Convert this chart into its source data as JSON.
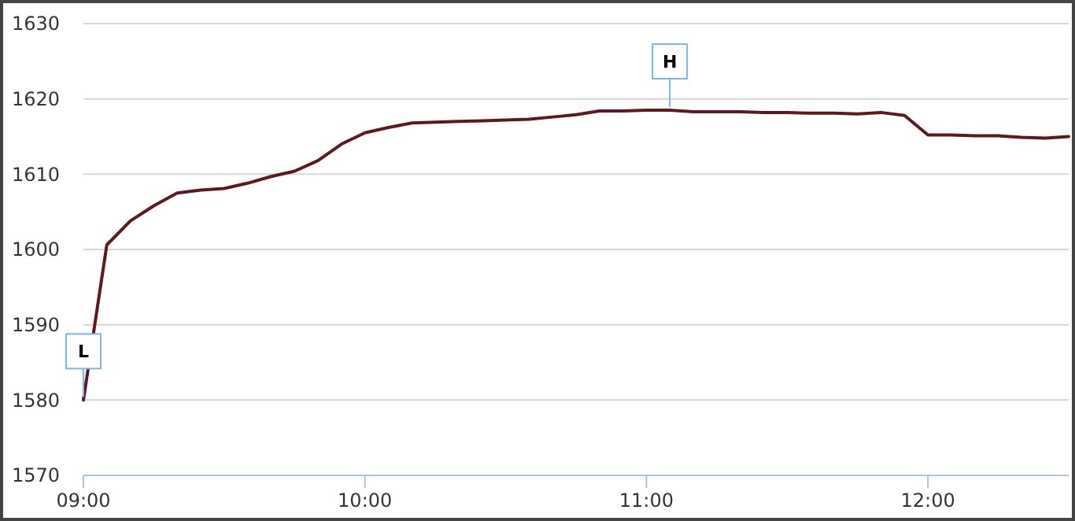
{
  "chart_data": {
    "type": "line",
    "x": [
      9,
      9.083,
      9.167,
      9.25,
      9.333,
      9.417,
      9.5,
      9.583,
      9.667,
      9.75,
      9.833,
      9.917,
      10,
      10.083,
      10.167,
      10.25,
      10.333,
      10.417,
      10.5,
      10.583,
      10.667,
      10.75,
      10.833,
      10.917,
      11,
      11.083,
      11.167,
      11.25,
      11.333,
      11.417,
      11.5,
      11.583,
      11.667,
      11.75,
      11.833,
      11.917,
      12,
      12.083,
      12.167,
      12.25,
      12.333,
      12.417,
      12.5
    ],
    "series": [
      {
        "color": "#5c1a1f",
        "values": [
          1580,
          1600.6,
          1603.8,
          1605.8,
          1607.5,
          1607.9,
          1608.1,
          1608.8,
          1609.7,
          1610.4,
          1611.8,
          1614,
          1615.5,
          1616.2,
          1616.8,
          1616.9,
          1617,
          1617.1,
          1617.2,
          1617.3,
          1617.6,
          1617.9,
          1618.4,
          1618.4,
          1618.5,
          1618.5,
          1618.3,
          1618.3,
          1618.3,
          1618.2,
          1618.2,
          1618.1,
          1618.1,
          1618,
          1618.2,
          1617.8,
          1615.2,
          1615.2,
          1615.1,
          1615.1,
          1614.9,
          1614.8,
          1615
        ]
      }
    ],
    "xlim": [
      9,
      12.5
    ],
    "xticks": [
      {
        "value": 9,
        "label": "09:00"
      },
      {
        "value": 10,
        "label": "10:00"
      },
      {
        "value": 11,
        "label": "11:00"
      },
      {
        "value": 12,
        "label": "12:00"
      }
    ],
    "ylim": [
      1570,
      1630
    ],
    "yticks": [
      1570,
      1580,
      1590,
      1600,
      1610,
      1620,
      1630
    ],
    "grid": "y",
    "annotations": [
      {
        "text": "L",
        "x": 9,
        "y": 1580
      },
      {
        "text": "H",
        "x": 11.083,
        "y": 1618.5
      }
    ]
  }
}
